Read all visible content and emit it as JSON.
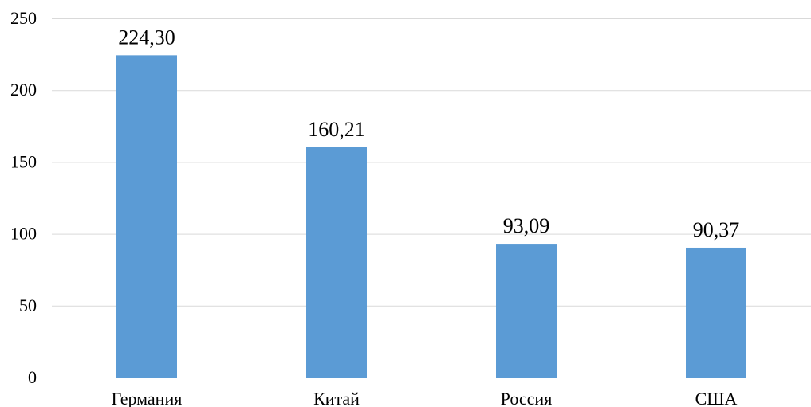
{
  "chart_data": {
    "type": "bar",
    "title": "",
    "xlabel": "",
    "ylabel": "",
    "categories": [
      "Германия",
      "Китай",
      "Россия",
      "США"
    ],
    "values": [
      224.3,
      160.21,
      93.09,
      90.37
    ],
    "data_labels": [
      "224,30",
      "160,21",
      "93,09",
      "90,37"
    ],
    "ylim": [
      0,
      250
    ],
    "y_ticks": [
      0,
      50,
      100,
      150,
      200,
      250
    ],
    "y_tick_labels": [
      "0",
      "50",
      "100",
      "150",
      "200",
      "250"
    ],
    "grid": true,
    "legend": "none",
    "bar_color": "#5b9bd5"
  }
}
